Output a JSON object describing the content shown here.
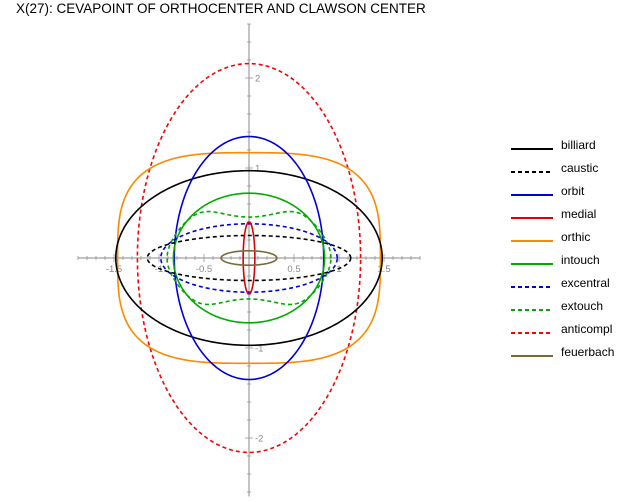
{
  "title": "X(27): CEVAPOINT OF ORTHOCENTER AND CLAWSON CENTER",
  "axes": {
    "x_ticks": [
      {
        "value": -1.5,
        "label": "-1.5"
      },
      {
        "value": -1,
        "label": "-1"
      },
      {
        "value": -0.5,
        "label": "-0.5"
      },
      {
        "value": 0.5,
        "label": "0.5"
      },
      {
        "value": 1,
        "label": "1"
      },
      {
        "value": 1.5,
        "label": "1.5"
      }
    ],
    "y_ticks": [
      {
        "value": -2,
        "label": "-2"
      },
      {
        "value": -1,
        "label": "-1"
      },
      {
        "value": 1,
        "label": "1"
      },
      {
        "value": 2,
        "label": "2"
      }
    ],
    "xlim": [
      -1.9,
      1.9
    ],
    "ylim": [
      -2.65,
      2.6
    ]
  },
  "curves": [
    {
      "name": "billiard",
      "color": "#000000",
      "dashed": false,
      "shape": "ellipse",
      "a": 1.48,
      "b": 0.97
    },
    {
      "name": "caustic",
      "color": "#000000",
      "dashed": true,
      "shape": "ellipse",
      "a": 1.13,
      "b": 0.25
    },
    {
      "name": "orbit",
      "color": "#0000dd",
      "dashed": false,
      "shape": "ellipse",
      "a": 0.83,
      "b": 1.35
    },
    {
      "name": "medial",
      "color": "#dd0000",
      "dashed": false,
      "shape": "ellipse",
      "a": 0.065,
      "b": 0.4
    },
    {
      "name": "orthic",
      "color": "#ff8800",
      "dashed": false,
      "shape": "superellipse",
      "a": 1.46,
      "b": 1.17,
      "n": 3.2
    },
    {
      "name": "intouch",
      "color": "#00aa00",
      "dashed": false,
      "shape": "ellipse",
      "a": 0.84,
      "b": 0.72
    },
    {
      "name": "excentral",
      "color": "#0000dd",
      "dashed": true,
      "shape": "ellipse",
      "a": 0.98,
      "b": 0.38
    },
    {
      "name": "extouch",
      "color": "#00aa00",
      "dashed": true,
      "shape": "curvy",
      "a": 0.91,
      "b": 0.7,
      "k": 0.25
    },
    {
      "name": "anticompl",
      "color": "#ff0000",
      "dashed": true,
      "shape": "ellipse",
      "a": 1.24,
      "b": 2.16
    },
    {
      "name": "feuerbach",
      "color": "#7a6a3a",
      "dashed": false,
      "shape": "ellipse",
      "a": 0.31,
      "b": 0.08
    }
  ]
}
